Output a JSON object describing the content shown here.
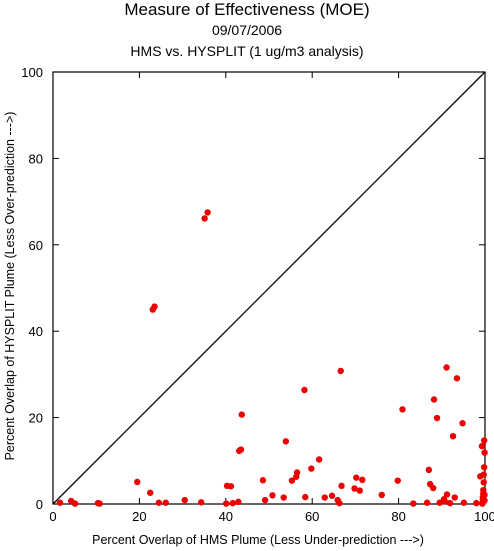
{
  "title": "Measure of Effectiveness (MOE)",
  "date": "09/07/2006",
  "subtitle": "HMS vs. HYSPLIT  (1 ug/m3 analysis)",
  "colors": {
    "points": "#ee0000",
    "axes": "#000000"
  },
  "chart_data": {
    "type": "scatter",
    "xlabel": "Percent Overlap of HMS Plume (Less Under-prediction --->)",
    "ylabel": "Percent Overlap of HYSPLIT Plume (Less Over-prediction --->)",
    "xlim": [
      0,
      100
    ],
    "ylim": [
      0,
      100
    ],
    "xticks": [
      0,
      20,
      40,
      60,
      80,
      100
    ],
    "yticks": [
      0,
      20,
      40,
      60,
      80,
      100
    ],
    "diagonal_line": true,
    "grid": false,
    "points": [
      [
        1.6,
        0.3
      ],
      [
        4.2,
        0.7
      ],
      [
        5.1,
        0.1
      ],
      [
        10.4,
        0.2
      ],
      [
        10.8,
        0.1
      ],
      [
        19.5,
        5.1
      ],
      [
        22.5,
        2.6
      ],
      [
        23.1,
        45.0
      ],
      [
        23.5,
        45.7
      ],
      [
        24.5,
        0.3
      ],
      [
        26.1,
        0.3
      ],
      [
        30.5,
        0.9
      ],
      [
        34.3,
        0.4
      ],
      [
        35.1,
        66.1
      ],
      [
        35.8,
        67.5
      ],
      [
        40.1,
        0.1
      ],
      [
        40.3,
        4.2
      ],
      [
        41.2,
        4.1
      ],
      [
        41.6,
        0.2
      ],
      [
        42.9,
        0.5
      ],
      [
        43.1,
        12.3
      ],
      [
        43.5,
        12.6
      ],
      [
        43.7,
        20.7
      ],
      [
        48.6,
        5.5
      ],
      [
        49.1,
        0.9
      ],
      [
        50.8,
        2.0
      ],
      [
        53.4,
        1.5
      ],
      [
        53.9,
        14.5
      ],
      [
        55.3,
        5.4
      ],
      [
        56.3,
        6.3
      ],
      [
        56.5,
        7.3
      ],
      [
        58.2,
        26.4
      ],
      [
        58.4,
        1.6
      ],
      [
        59.8,
        8.2
      ],
      [
        61.6,
        10.3
      ],
      [
        62.9,
        1.5
      ],
      [
        64.6,
        1.9
      ],
      [
        65.9,
        0.9
      ],
      [
        66.3,
        0.2
      ],
      [
        66.6,
        30.8
      ],
      [
        66.8,
        4.2
      ],
      [
        69.8,
        3.6
      ],
      [
        70.2,
        6.1
      ],
      [
        71.0,
        3.1
      ],
      [
        71.6,
        5.6
      ],
      [
        76.1,
        2.1
      ],
      [
        79.8,
        5.4
      ],
      [
        80.9,
        21.9
      ],
      [
        83.4,
        0.1
      ],
      [
        86.6,
        0.3
      ],
      [
        87.0,
        7.9
      ],
      [
        87.3,
        4.6
      ],
      [
        88.0,
        3.7
      ],
      [
        88.2,
        24.2
      ],
      [
        88.9,
        19.9
      ],
      [
        89.5,
        0.3
      ],
      [
        90.5,
        1.1
      ],
      [
        90.7,
        0.6
      ],
      [
        91.1,
        31.6
      ],
      [
        91.2,
        2.2
      ],
      [
        91.9,
        0.2
      ],
      [
        92.6,
        15.7
      ],
      [
        93.0,
        1.5
      ],
      [
        93.5,
        29.1
      ],
      [
        94.8,
        18.7
      ],
      [
        95.1,
        0.3
      ],
      [
        98.0,
        0.2
      ],
      [
        98.9,
        6.4
      ],
      [
        99.3,
        13.4
      ],
      [
        99.4,
        0.1
      ],
      [
        99.5,
        0.4
      ],
      [
        99.5,
        1.0
      ],
      [
        99.5,
        1.6
      ],
      [
        99.6,
        2.4
      ],
      [
        99.6,
        3.2
      ],
      [
        99.7,
        5.0
      ],
      [
        99.7,
        6.8
      ],
      [
        99.8,
        8.5
      ],
      [
        99.8,
        14.7
      ],
      [
        99.9,
        11.9
      ],
      [
        99.9,
        0.8
      ],
      [
        99.9,
        2.1
      ]
    ]
  }
}
